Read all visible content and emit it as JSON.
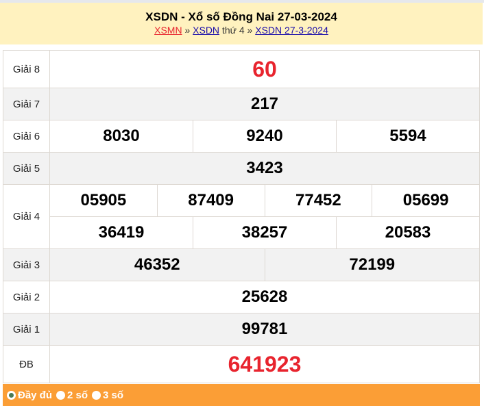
{
  "header": {
    "title": "XSDN - Xổ số Đồng Nai 27-03-2024",
    "breadcrumb": {
      "link1": "XSMN",
      "sep1": " » ",
      "link2": "XSDN",
      "text": " thứ 4",
      "sep2": " » ",
      "link3": "XSDN 27-3-2024"
    }
  },
  "results": {
    "g8": {
      "label": "Giải 8",
      "nums": [
        "60"
      ]
    },
    "g7": {
      "label": "Giải 7",
      "nums": [
        "217"
      ]
    },
    "g6": {
      "label": "Giải 6",
      "nums": [
        "8030",
        "9240",
        "5594"
      ]
    },
    "g5": {
      "label": "Giải 5",
      "nums": [
        "3423"
      ]
    },
    "g4": {
      "label": "Giải 4",
      "nums": [
        "05905",
        "87409",
        "77452",
        "05699",
        "36419",
        "38257",
        "20583"
      ]
    },
    "g3": {
      "label": "Giải 3",
      "nums": [
        "46352",
        "72199"
      ]
    },
    "g2": {
      "label": "Giải 2",
      "nums": [
        "25628"
      ]
    },
    "g1": {
      "label": "Giải 1",
      "nums": [
        "99781"
      ]
    },
    "db": {
      "label": "ĐB",
      "nums": [
        "641923"
      ]
    }
  },
  "footer": {
    "options": [
      {
        "label": "Đầy đủ",
        "selected": true
      },
      {
        "label": "2 số",
        "selected": false
      },
      {
        "label": "3 số",
        "selected": false
      }
    ]
  },
  "colors": {
    "header_bg": "#fff2bf",
    "highlight": "#e8242e",
    "footer_bg": "#fb9e36"
  }
}
